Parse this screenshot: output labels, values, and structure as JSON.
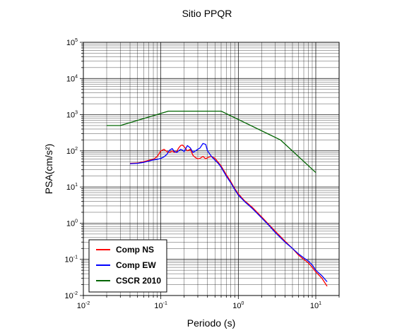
{
  "chart_data": {
    "type": "line",
    "title": "Sitio PPQR",
    "xlabel": "Periodo (s)",
    "ylabel": "PSA(cm/s²)",
    "xscale": "log",
    "yscale": "log",
    "xlim": [
      0.01,
      20
    ],
    "ylim": [
      0.01,
      100000
    ],
    "grid": true,
    "legend_position": "bottom-left",
    "x_ticks": [
      {
        "base": "10",
        "exp": "-2"
      },
      {
        "base": "10",
        "exp": "-1"
      },
      {
        "base": "10",
        "exp": "0"
      },
      {
        "base": "10",
        "exp": "1"
      }
    ],
    "y_ticks": [
      {
        "base": "10",
        "exp": "-2"
      },
      {
        "base": "10",
        "exp": "-1"
      },
      {
        "base": "10",
        "exp": "0"
      },
      {
        "base": "10",
        "exp": "1"
      },
      {
        "base": "10",
        "exp": "2"
      },
      {
        "base": "10",
        "exp": "3"
      },
      {
        "base": "10",
        "exp": "4"
      },
      {
        "base": "10",
        "exp": "5"
      }
    ],
    "series": [
      {
        "name": "Comp NS",
        "color": "#ff0000",
        "x": [
          0.04,
          0.05,
          0.06,
          0.07,
          0.08,
          0.09,
          0.1,
          0.11,
          0.12,
          0.13,
          0.14,
          0.15,
          0.16,
          0.17,
          0.18,
          0.19,
          0.2,
          0.22,
          0.24,
          0.26,
          0.28,
          0.3,
          0.32,
          0.35,
          0.38,
          0.4,
          0.45,
          0.5,
          0.55,
          0.6,
          0.7,
          0.8,
          0.9,
          1.0,
          1.2,
          1.5,
          2.0,
          2.5,
          3.0,
          4.0,
          5.0,
          6.0,
          7.0,
          8.0,
          9.0,
          10.0,
          12.0,
          14.0
        ],
        "y": [
          45,
          46,
          50,
          55,
          58,
          70,
          100,
          110,
          95,
          90,
          100,
          90,
          95,
          120,
          140,
          145,
          130,
          100,
          110,
          75,
          65,
          60,
          62,
          70,
          60,
          65,
          70,
          62,
          48,
          38,
          22,
          14,
          9,
          6.5,
          4.2,
          2.8,
          1.5,
          0.9,
          0.6,
          0.32,
          0.2,
          0.13,
          0.1,
          0.08,
          0.06,
          0.045,
          0.03,
          0.018
        ]
      },
      {
        "name": "Comp EW",
        "color": "#0000ff",
        "x": [
          0.04,
          0.05,
          0.06,
          0.07,
          0.08,
          0.09,
          0.1,
          0.11,
          0.12,
          0.13,
          0.14,
          0.15,
          0.16,
          0.17,
          0.18,
          0.19,
          0.2,
          0.22,
          0.24,
          0.26,
          0.28,
          0.3,
          0.32,
          0.35,
          0.38,
          0.4,
          0.45,
          0.5,
          0.55,
          0.6,
          0.7,
          0.8,
          0.9,
          1.0,
          1.2,
          1.5,
          2.0,
          2.5,
          3.0,
          4.0,
          5.0,
          6.0,
          7.0,
          8.0,
          9.0,
          10.0,
          12.0,
          14.0
        ],
        "y": [
          44,
          45,
          48,
          52,
          56,
          58,
          62,
          68,
          80,
          105,
          115,
          95,
          90,
          100,
          110,
          105,
          95,
          140,
          120,
          90,
          100,
          110,
          120,
          160,
          150,
          100,
          70,
          55,
          45,
          35,
          20,
          13,
          8.5,
          6.0,
          4.0,
          2.6,
          1.4,
          0.85,
          0.55,
          0.3,
          0.2,
          0.14,
          0.11,
          0.09,
          0.07,
          0.05,
          0.035,
          0.024
        ]
      },
      {
        "name": "CSCR 2010",
        "color": "#006400",
        "x": [
          0.02,
          0.03,
          0.125,
          0.6,
          3.5,
          10.0
        ],
        "y": [
          500,
          500,
          1250,
          1250,
          200,
          25
        ]
      }
    ]
  }
}
